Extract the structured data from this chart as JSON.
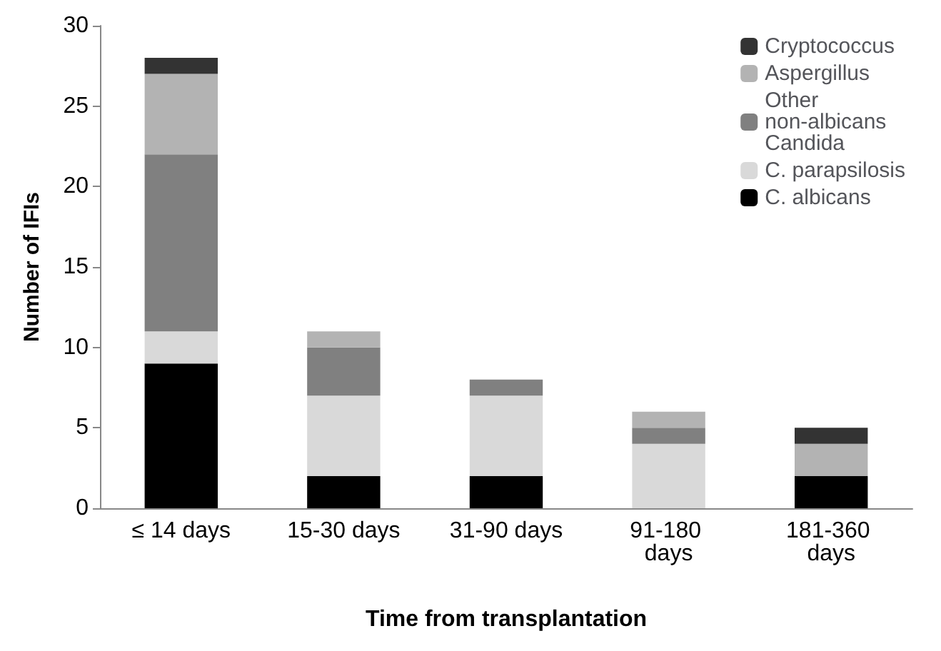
{
  "chart_data": {
    "type": "bar",
    "stacked": true,
    "xlabel": "Time from transplantation",
    "ylabel": "Number of IFIs",
    "categories": [
      "≤ 14 days",
      "15-30 days",
      "31-90 days",
      "91-180 days",
      "181-360 days"
    ],
    "series": [
      {
        "name": "C. albicans",
        "color": "#000000",
        "values": [
          9,
          2,
          2,
          0,
          2
        ]
      },
      {
        "name": "C. parapsilosis",
        "color": "#d9d9d9",
        "values": [
          2,
          5,
          5,
          4,
          0
        ]
      },
      {
        "name": "Other non-albicans Candida",
        "color": "#808080",
        "values": [
          11,
          3,
          1,
          1,
          0
        ]
      },
      {
        "name": "Aspergillus",
        "color": "#b3b3b3",
        "values": [
          5,
          1,
          0,
          1,
          2
        ]
      },
      {
        "name": "Cryptococcus",
        "color": "#333333",
        "values": [
          1,
          0,
          0,
          0,
          1
        ]
      }
    ],
    "ylim": [
      0,
      30
    ],
    "yticks": [
      0,
      5,
      10,
      15,
      20,
      25,
      30
    ],
    "grid": false,
    "legend": "top right"
  }
}
